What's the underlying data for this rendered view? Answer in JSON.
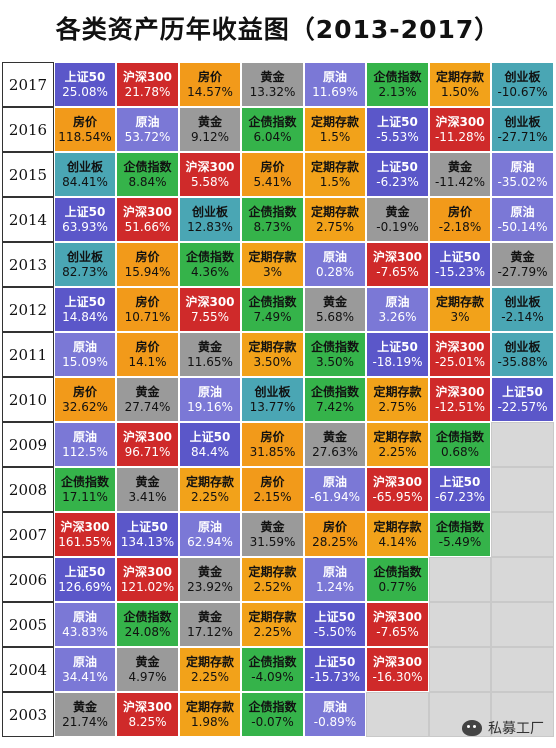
{
  "title": "各类资产历年收益图（2013-2017）",
  "colors": {
    "上证50": {
      "bg": "#5b57c9",
      "fg": "#ffffff"
    },
    "沪深300": {
      "bg": "#cf2a2a",
      "fg": "#ffffff"
    },
    "房价": {
      "bg": "#f29a1a",
      "fg": "#111111"
    },
    "黄金": {
      "bg": "#9a9a9a",
      "fg": "#111111"
    },
    "原油": {
      "bg": "#7b78d6",
      "fg": "#ffffff"
    },
    "企债指数": {
      "bg": "#35b34a",
      "fg": "#111111"
    },
    "定期存款": {
      "bg": "#f2a21a",
      "fg": "#111111"
    },
    "创业板": {
      "bg": "#4aa6b4",
      "fg": "#111111"
    }
  },
  "rows": [
    {
      "year": "2017",
      "cells": [
        [
          "上证50",
          "25.08%"
        ],
        [
          "沪深300",
          "21.78%"
        ],
        [
          "房价",
          "14.57%"
        ],
        [
          "黄金",
          "13.32%"
        ],
        [
          "原油",
          "11.69%"
        ],
        [
          "企债指数",
          "2.13%"
        ],
        [
          "定期存款",
          "1.50%"
        ],
        [
          "创业板",
          "-10.67%"
        ]
      ]
    },
    {
      "year": "2016",
      "cells": [
        [
          "房价",
          "118.54%"
        ],
        [
          "原油",
          "53.72%"
        ],
        [
          "黄金",
          "9.12%"
        ],
        [
          "企债指数",
          "6.04%"
        ],
        [
          "定期存款",
          "1.5%"
        ],
        [
          "上证50",
          "-5.53%"
        ],
        [
          "沪深300",
          "-11.28%"
        ],
        [
          "创业板",
          "-27.71%"
        ]
      ]
    },
    {
      "year": "2015",
      "cells": [
        [
          "创业板",
          "84.41%"
        ],
        [
          "企债指数",
          "8.84%"
        ],
        [
          "沪深300",
          "5.58%"
        ],
        [
          "房价",
          "5.41%"
        ],
        [
          "定期存款",
          "1.5%"
        ],
        [
          "上证50",
          "-6.23%"
        ],
        [
          "黄金",
          "-11.42%"
        ],
        [
          "原油",
          "-35.02%"
        ]
      ]
    },
    {
      "year": "2014",
      "cells": [
        [
          "上证50",
          "63.93%"
        ],
        [
          "沪深300",
          "51.66%"
        ],
        [
          "创业板",
          "12.83%"
        ],
        [
          "企债指数",
          "8.73%"
        ],
        [
          "定期存款",
          "2.75%"
        ],
        [
          "黄金",
          "-0.19%"
        ],
        [
          "房价",
          "-2.18%"
        ],
        [
          "原油",
          "-50.14%"
        ]
      ]
    },
    {
      "year": "2013",
      "cells": [
        [
          "创业板",
          "82.73%"
        ],
        [
          "房价",
          "15.94%"
        ],
        [
          "企债指数",
          "4.36%"
        ],
        [
          "定期存款",
          "3%"
        ],
        [
          "原油",
          "0.28%"
        ],
        [
          "沪深300",
          "-7.65%"
        ],
        [
          "上证50",
          "-15.23%"
        ],
        [
          "黄金",
          "-27.79%"
        ]
      ]
    },
    {
      "year": "2012",
      "cells": [
        [
          "上证50",
          "14.84%"
        ],
        [
          "房价",
          "10.71%"
        ],
        [
          "沪深300",
          "7.55%"
        ],
        [
          "企债指数",
          "7.49%"
        ],
        [
          "黄金",
          "5.68%"
        ],
        [
          "原油",
          "3.26%"
        ],
        [
          "定期存款",
          "3%"
        ],
        [
          "创业板",
          "-2.14%"
        ]
      ]
    },
    {
      "year": "2011",
      "cells": [
        [
          "原油",
          "15.09%"
        ],
        [
          "房价",
          "14.1%"
        ],
        [
          "黄金",
          "11.65%"
        ],
        [
          "定期存款",
          "3.50%"
        ],
        [
          "企债指数",
          "3.50%"
        ],
        [
          "上证50",
          "-18.19%"
        ],
        [
          "沪深300",
          "-25.01%"
        ],
        [
          "创业板",
          "-35.88%"
        ]
      ]
    },
    {
      "year": "2010",
      "cells": [
        [
          "房价",
          "32.62%"
        ],
        [
          "黄金",
          "27.74%"
        ],
        [
          "原油",
          "19.16%"
        ],
        [
          "创业板",
          "13.77%"
        ],
        [
          "企债指数",
          "7.42%"
        ],
        [
          "定期存款",
          "2.75%"
        ],
        [
          "沪深300",
          "-12.51%"
        ],
        [
          "上证50",
          "-22.57%"
        ]
      ]
    },
    {
      "year": "2009",
      "cells": [
        [
          "原油",
          "112.5%"
        ],
        [
          "沪深300",
          "96.71%"
        ],
        [
          "上证50",
          "84.4%"
        ],
        [
          "房价",
          "31.85%"
        ],
        [
          "黄金",
          "27.63%"
        ],
        [
          "定期存款",
          "2.25%"
        ],
        [
          "企债指数",
          "0.68%"
        ]
      ]
    },
    {
      "year": "2008",
      "cells": [
        [
          "企债指数",
          "17.11%"
        ],
        [
          "黄金",
          "3.41%"
        ],
        [
          "定期存款",
          "2.25%"
        ],
        [
          "房价",
          "2.15%"
        ],
        [
          "原油",
          "-61.94%"
        ],
        [
          "沪深300",
          "-65.95%"
        ],
        [
          "上证50",
          "-67.23%"
        ]
      ]
    },
    {
      "year": "2007",
      "cells": [
        [
          "沪深300",
          "161.55%"
        ],
        [
          "上证50",
          "134.13%"
        ],
        [
          "原油",
          "62.94%"
        ],
        [
          "黄金",
          "31.59%"
        ],
        [
          "房价",
          "28.25%"
        ],
        [
          "定期存款",
          "4.14%"
        ],
        [
          "企债指数",
          "-5.49%"
        ]
      ]
    },
    {
      "year": "2006",
      "cells": [
        [
          "上证50",
          "126.69%"
        ],
        [
          "沪深300",
          "121.02%"
        ],
        [
          "黄金",
          "23.92%"
        ],
        [
          "定期存款",
          "2.52%"
        ],
        [
          "原油",
          "1.24%"
        ],
        [
          "企债指数",
          "0.77%"
        ]
      ]
    },
    {
      "year": "2005",
      "cells": [
        [
          "原油",
          "43.83%"
        ],
        [
          "企债指数",
          "24.08%"
        ],
        [
          "黄金",
          "17.12%"
        ],
        [
          "定期存款",
          "2.25%"
        ],
        [
          "上证50",
          "-5.50%"
        ],
        [
          "沪深300",
          "-7.65%"
        ]
      ]
    },
    {
      "year": "2004",
      "cells": [
        [
          "原油",
          "34.41%"
        ],
        [
          "黄金",
          "4.97%"
        ],
        [
          "定期存款",
          "2.25%"
        ],
        [
          "企债指数",
          "-4.09%"
        ],
        [
          "上证50",
          "-15.73%"
        ],
        [
          "沪深300",
          "-16.30%"
        ]
      ]
    },
    {
      "year": "2003",
      "cells": [
        [
          "黄金",
          "21.74%"
        ],
        [
          "沪深300",
          "8.25%"
        ],
        [
          "定期存款",
          "1.98%"
        ],
        [
          "企债指数",
          "-0.07%"
        ],
        [
          "原油",
          "-0.89%"
        ]
      ]
    }
  ],
  "watermark": "私募工厂"
}
